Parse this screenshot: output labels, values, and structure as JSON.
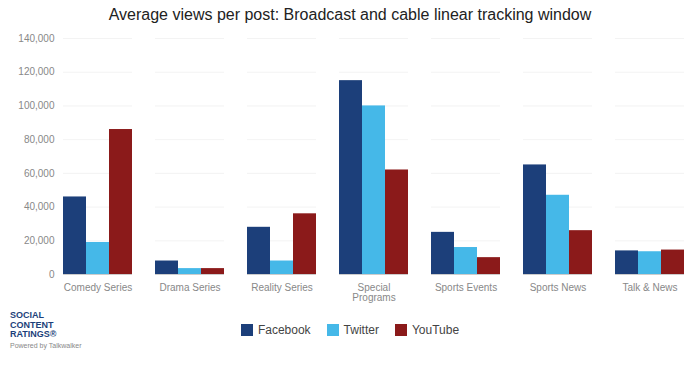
{
  "chart_data": {
    "type": "bar",
    "title": "Average views per post: Broadcast and cable linear tracking window",
    "categories": [
      "Comedy Series",
      "Drama Series",
      "Reality Series",
      "Special\nPrograms",
      "Sports Events",
      "Sports News",
      "Talk & News"
    ],
    "series": [
      {
        "name": "Facebook",
        "color": "#1C3F7A",
        "values": [
          46000,
          8000,
          28000,
          115000,
          25000,
          65000,
          14000
        ]
      },
      {
        "name": "Twitter",
        "color": "#45B8E8",
        "values": [
          19000,
          3500,
          8000,
          100000,
          16000,
          47000,
          13500
        ]
      },
      {
        "name": "YouTube",
        "color": "#8B1A1A",
        "values": [
          86000,
          3500,
          36000,
          62000,
          10000,
          26000,
          14500
        ]
      }
    ],
    "ylim": [
      0,
      140000
    ],
    "yticks": [
      0,
      {
        "value": 20000,
        "label": "20,000"
      },
      {
        "value": 40000,
        "label": "40,000"
      },
      {
        "value": 60000,
        "label": "60,000"
      },
      {
        "value": 80000,
        "label": "80,000"
      },
      {
        "value": 100000,
        "label": "100,000"
      },
      {
        "value": 120000,
        "label": "120,000"
      },
      {
        "value": 140000,
        "label": "140,000"
      }
    ],
    "grid": true,
    "legend": "bottom",
    "annotations": [
      "SOCIAL\nCONTENT\nRATINGS®",
      "Powered by Talkwalker"
    ]
  }
}
